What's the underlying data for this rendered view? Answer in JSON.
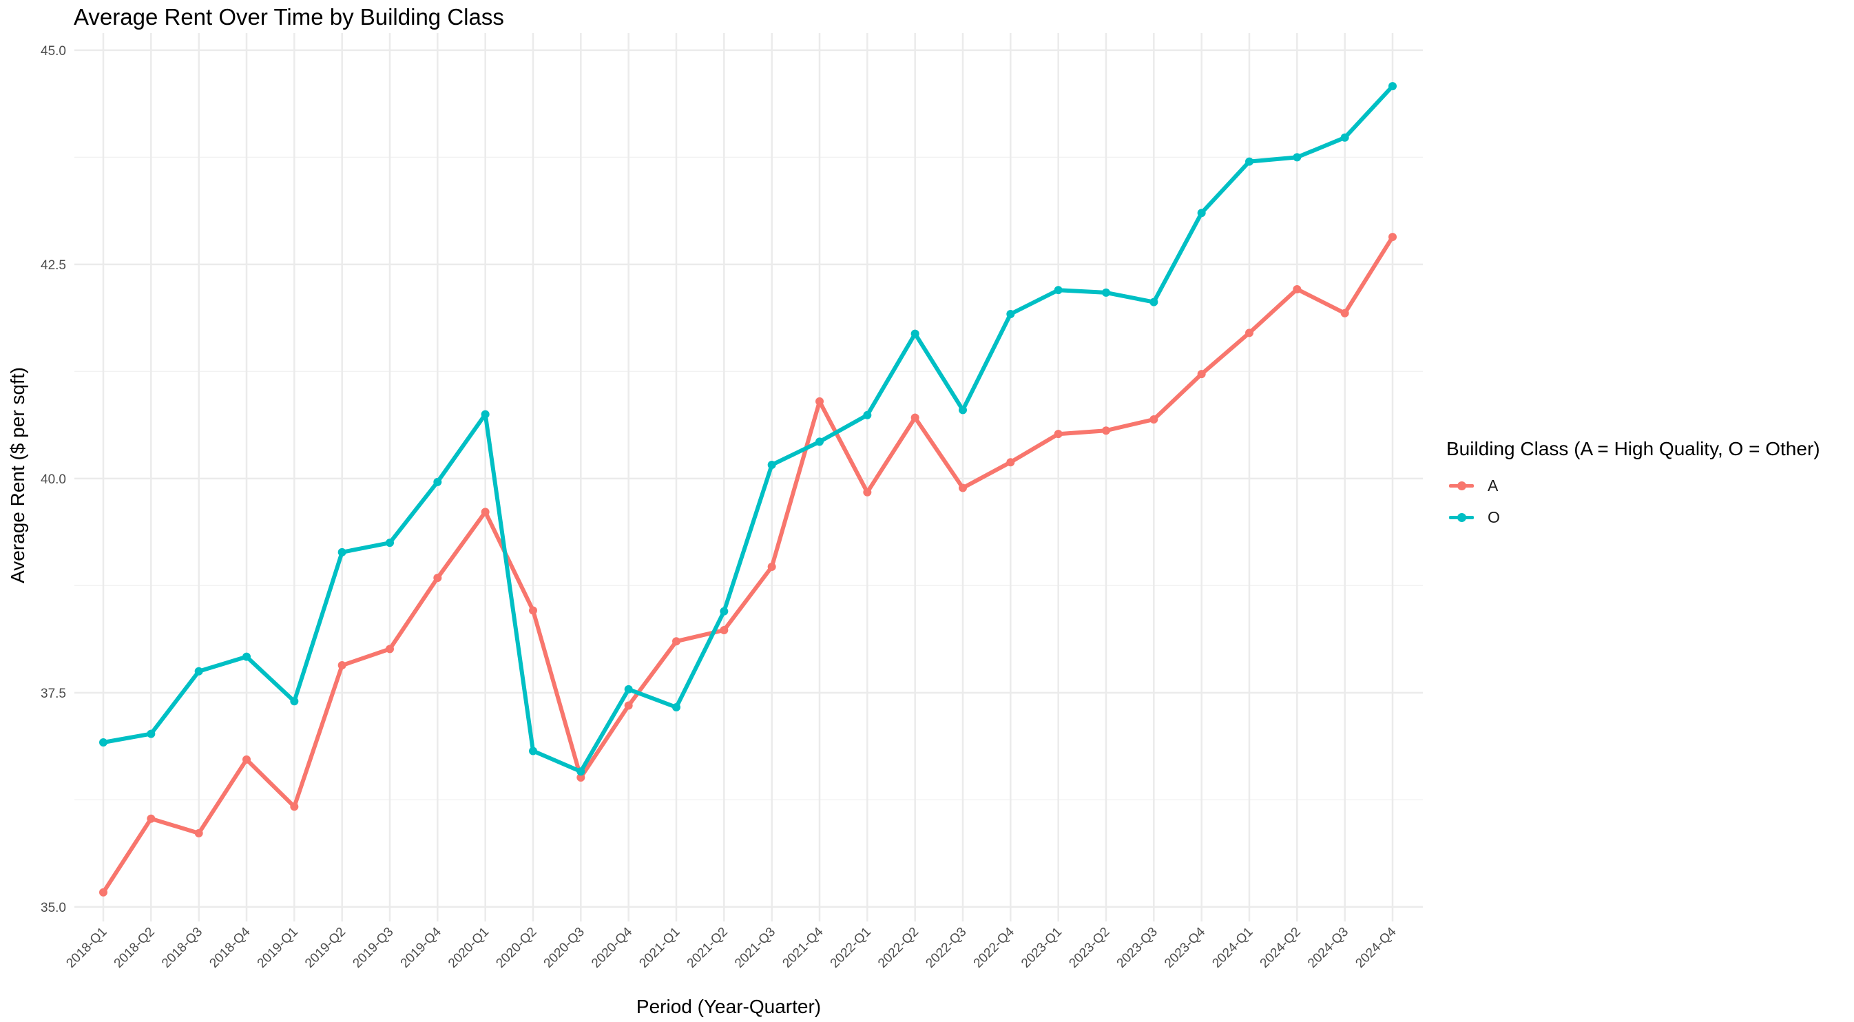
{
  "chart_data": {
    "type": "line",
    "title": "Average Rent Over Time by Building Class",
    "xlabel": "Period (Year-Quarter)",
    "ylabel": "Average Rent ($ per sqft)",
    "categories": [
      "2018-Q1",
      "2018-Q2",
      "2018-Q3",
      "2018-Q4",
      "2019-Q1",
      "2019-Q2",
      "2019-Q3",
      "2019-Q4",
      "2020-Q1",
      "2020-Q2",
      "2020-Q3",
      "2020-Q4",
      "2021-Q1",
      "2021-Q2",
      "2021-Q3",
      "2021-Q4",
      "2022-Q1",
      "2022-Q2",
      "2022-Q3",
      "2022-Q4",
      "2023-Q1",
      "2023-Q2",
      "2023-Q3",
      "2023-Q4",
      "2024-Q1",
      "2024-Q2",
      "2024-Q3",
      "2024-Q4"
    ],
    "y_ticks": [
      35.0,
      37.5,
      40.0,
      42.5,
      45.0
    ],
    "y_tick_labels": [
      "35.0",
      "37.5",
      "40.0",
      "42.5",
      "45.0"
    ],
    "ylim": [
      34.83,
      45.2
    ],
    "grid": true,
    "legend": {
      "title": "Building Class (A = High Quality, O = Other)",
      "position": "right"
    },
    "series": [
      {
        "name": "A",
        "color": "#F8766D",
        "values": [
          35.17,
          36.03,
          35.86,
          36.72,
          36.17,
          37.82,
          38.01,
          38.84,
          39.61,
          38.46,
          36.51,
          37.35,
          38.1,
          38.23,
          38.97,
          40.9,
          39.84,
          40.71,
          39.89,
          40.19,
          40.52,
          40.56,
          40.69,
          41.22,
          41.7,
          42.21,
          41.93,
          42.82
        ]
      },
      {
        "name": "O",
        "color": "#00BFC4",
        "values": [
          36.92,
          37.02,
          37.75,
          37.92,
          37.4,
          39.14,
          39.25,
          39.96,
          40.75,
          36.82,
          36.58,
          37.54,
          37.33,
          38.45,
          40.16,
          40.43,
          40.74,
          41.69,
          40.8,
          41.92,
          42.2,
          42.17,
          42.06,
          43.1,
          43.7,
          43.75,
          43.98,
          44.58
        ]
      }
    ]
  }
}
